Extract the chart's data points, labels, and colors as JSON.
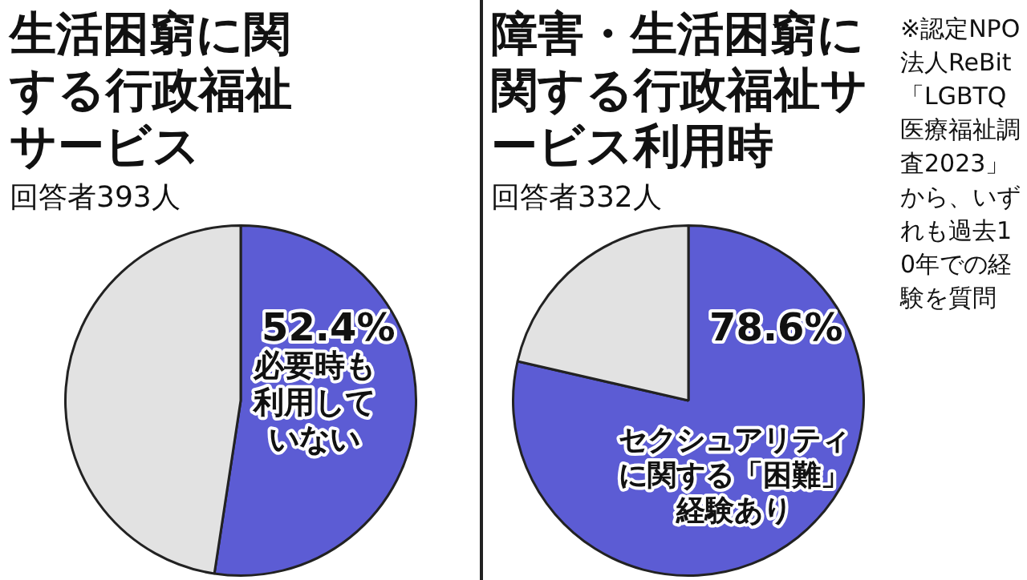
{
  "chart_data": [
    {
      "type": "pie",
      "title": "生活困窮に関する行政福祉サービス",
      "subtitle": "回答者393人",
      "categories": [
        "必要時も利用していない",
        null
      ],
      "values": [
        52.4,
        47.6
      ],
      "colors": [
        "#5c5cd4",
        "#e2e2e2"
      ],
      "value_labels": [
        "52.4%",
        null
      ]
    },
    {
      "type": "pie",
      "title": "障害・生活困窮に関する行政福祉サービス利用時",
      "subtitle": "回答者332人",
      "categories": [
        "セクシュアリティに関する「困難」経験あり",
        null
      ],
      "values": [
        78.6,
        21.4
      ],
      "colors": [
        "#5c5cd4",
        "#e2e2e2"
      ],
      "value_labels": [
        "78.6%",
        null
      ],
      "annotations": [
        "※認定NPO法人ReBit「LGBTQ医療福祉調査2023」から、いずれも過去10年での経験を質問"
      ]
    }
  ]
}
